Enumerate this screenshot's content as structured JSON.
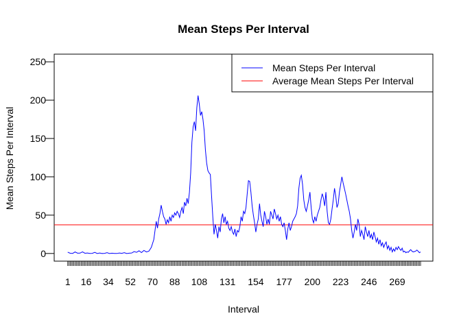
{
  "chart_data": {
    "type": "line",
    "title": "Mean Steps Per Interval",
    "xlabel": "Interval",
    "ylabel": "Mean Steps Per Interval",
    "ylim": [
      -10,
      260
    ],
    "xlim": [
      -10,
      298
    ],
    "y_ticks": [
      0,
      50,
      100,
      150,
      200,
      250
    ],
    "x_tick_labels": [
      {
        "x": 1,
        "label": "1"
      },
      {
        "x": 16,
        "label": "16"
      },
      {
        "x": 34,
        "label": "34"
      },
      {
        "x": 52,
        "label": "52"
      },
      {
        "x": 70,
        "label": "70"
      },
      {
        "x": 88,
        "label": "88"
      },
      {
        "x": 108,
        "label": "108"
      },
      {
        "x": 131,
        "label": "131"
      },
      {
        "x": 154,
        "label": "154"
      },
      {
        "x": 177,
        "label": "177"
      },
      {
        "x": 200,
        "label": "200"
      },
      {
        "x": 223,
        "label": "223"
      },
      {
        "x": 246,
        "label": "246"
      },
      {
        "x": 269,
        "label": "269"
      }
    ],
    "minor_tick_count": 288,
    "grid": false,
    "legend_position": "top-right",
    "series": [
      {
        "name": "Mean Steps Per Interval",
        "color": "#0000ff",
        "points": [
          [
            1,
            1.7
          ],
          [
            3,
            0.3
          ],
          [
            5,
            0.1
          ],
          [
            7,
            2.0
          ],
          [
            9,
            0.4
          ],
          [
            11,
            0.5
          ],
          [
            13,
            2.1
          ],
          [
            15,
            0.3
          ],
          [
            17,
            0.6
          ],
          [
            19,
            0.1
          ],
          [
            21,
            0.2
          ],
          [
            23,
            1.5
          ],
          [
            25,
            0.0
          ],
          [
            27,
            0.6
          ],
          [
            29,
            0.0
          ],
          [
            31,
            0.2
          ],
          [
            33,
            1.0
          ],
          [
            35,
            0.0
          ],
          [
            37,
            0.4
          ],
          [
            39,
            0.1
          ],
          [
            41,
            0.0
          ],
          [
            43,
            0.6
          ],
          [
            45,
            0.2
          ],
          [
            47,
            1.0
          ],
          [
            49,
            0.0
          ],
          [
            51,
            0.4
          ],
          [
            53,
            0.6
          ],
          [
            55,
            2.5
          ],
          [
            57,
            1.5
          ],
          [
            59,
            3.5
          ],
          [
            61,
            1.2
          ],
          [
            63,
            4.0
          ],
          [
            65,
            2.0
          ],
          [
            67,
            3.0
          ],
          [
            69,
            8.0
          ],
          [
            71,
            18.0
          ],
          [
            72,
            30.0
          ],
          [
            73,
            42.0
          ],
          [
            74,
            33.0
          ],
          [
            75,
            45.0
          ],
          [
            76,
            52.0
          ],
          [
            77,
            63.0
          ],
          [
            78,
            55.0
          ],
          [
            79,
            48.0
          ],
          [
            80,
            45.0
          ],
          [
            81,
            38.0
          ],
          [
            82,
            44.0
          ],
          [
            83,
            40.0
          ],
          [
            84,
            48.0
          ],
          [
            85,
            42.0
          ],
          [
            86,
            50.0
          ],
          [
            87,
            47.0
          ],
          [
            88,
            53.0
          ],
          [
            89,
            50.0
          ],
          [
            90,
            55.0
          ],
          [
            91,
            52.0
          ],
          [
            92,
            47.0
          ],
          [
            93,
            55.0
          ],
          [
            94,
            60.0
          ],
          [
            95,
            52.0
          ],
          [
            96,
            67.0
          ],
          [
            97,
            62.0
          ],
          [
            98,
            72.0
          ],
          [
            99,
            65.0
          ],
          [
            100,
            80.0
          ],
          [
            101,
            105.0
          ],
          [
            102,
            145.0
          ],
          [
            103,
            165.0
          ],
          [
            104,
            172.0
          ],
          [
            105,
            160.0
          ],
          [
            106,
            190.0
          ],
          [
            107,
            206.0
          ],
          [
            108,
            195.0
          ],
          [
            109,
            180.0
          ],
          [
            110,
            185.0
          ],
          [
            111,
            175.0
          ],
          [
            112,
            160.0
          ],
          [
            113,
            135.0
          ],
          [
            114,
            118.0
          ],
          [
            115,
            108.0
          ],
          [
            116,
            105.0
          ],
          [
            117,
            103.0
          ],
          [
            118,
            75.0
          ],
          [
            119,
            48.0
          ],
          [
            120,
            25.0
          ],
          [
            121,
            38.0
          ],
          [
            122,
            30.0
          ],
          [
            123,
            20.0
          ],
          [
            124,
            35.0
          ],
          [
            125,
            28.0
          ],
          [
            126,
            45.0
          ],
          [
            127,
            52.0
          ],
          [
            128,
            40.0
          ],
          [
            129,
            48.0
          ],
          [
            130,
            38.0
          ],
          [
            131,
            42.0
          ],
          [
            132,
            33.0
          ],
          [
            133,
            30.0
          ],
          [
            134,
            35.0
          ],
          [
            135,
            28.0
          ],
          [
            136,
            25.0
          ],
          [
            137,
            32.0
          ],
          [
            138,
            22.0
          ],
          [
            139,
            30.0
          ],
          [
            140,
            28.0
          ],
          [
            141,
            35.0
          ],
          [
            142,
            48.0
          ],
          [
            143,
            42.0
          ],
          [
            144,
            55.0
          ],
          [
            145,
            52.0
          ],
          [
            146,
            60.0
          ],
          [
            147,
            78.0
          ],
          [
            148,
            95.0
          ],
          [
            149,
            94.0
          ],
          [
            150,
            80.0
          ],
          [
            151,
            62.0
          ],
          [
            152,
            50.0
          ],
          [
            153,
            40.0
          ],
          [
            154,
            28.0
          ],
          [
            155,
            38.0
          ],
          [
            156,
            45.0
          ],
          [
            157,
            65.0
          ],
          [
            158,
            50.0
          ],
          [
            159,
            42.0
          ],
          [
            160,
            35.0
          ],
          [
            161,
            55.0
          ],
          [
            162,
            48.0
          ],
          [
            163,
            38.0
          ],
          [
            164,
            45.0
          ],
          [
            165,
            38.0
          ],
          [
            166,
            55.0
          ],
          [
            167,
            50.0
          ],
          [
            168,
            45.0
          ],
          [
            169,
            58.0
          ],
          [
            170,
            52.0
          ],
          [
            171,
            45.0
          ],
          [
            172,
            50.0
          ],
          [
            173,
            42.0
          ],
          [
            174,
            48.0
          ],
          [
            175,
            38.0
          ],
          [
            176,
            35.0
          ],
          [
            177,
            40.0
          ],
          [
            178,
            30.0
          ],
          [
            179,
            18.0
          ],
          [
            180,
            32.0
          ],
          [
            181,
            40.0
          ],
          [
            182,
            30.0
          ],
          [
            183,
            35.0
          ],
          [
            184,
            42.0
          ],
          [
            185,
            45.0
          ],
          [
            186,
            48.0
          ],
          [
            187,
            52.0
          ],
          [
            188,
            62.0
          ],
          [
            189,
            85.0
          ],
          [
            190,
            98.0
          ],
          [
            191,
            102.0
          ],
          [
            192,
            90.0
          ],
          [
            193,
            70.0
          ],
          [
            194,
            60.0
          ],
          [
            195,
            55.0
          ],
          [
            196,
            62.0
          ],
          [
            197,
            70.0
          ],
          [
            198,
            80.0
          ],
          [
            199,
            60.0
          ],
          [
            200,
            45.0
          ],
          [
            201,
            40.0
          ],
          [
            202,
            48.0
          ],
          [
            203,
            42.0
          ],
          [
            204,
            50.0
          ],
          [
            205,
            55.0
          ],
          [
            206,
            60.0
          ],
          [
            207,
            70.0
          ],
          [
            208,
            78.0
          ],
          [
            209,
            72.0
          ],
          [
            210,
            62.0
          ],
          [
            211,
            80.0
          ],
          [
            212,
            55.0
          ],
          [
            213,
            40.0
          ],
          [
            214,
            38.0
          ],
          [
            215,
            45.0
          ],
          [
            216,
            58.0
          ],
          [
            217,
            70.0
          ],
          [
            218,
            85.0
          ],
          [
            219,
            75.0
          ],
          [
            220,
            60.0
          ],
          [
            221,
            65.0
          ],
          [
            222,
            80.0
          ],
          [
            223,
            90.0
          ],
          [
            224,
            100.0
          ],
          [
            225,
            92.0
          ],
          [
            226,
            85.0
          ],
          [
            227,
            78.0
          ],
          [
            228,
            70.0
          ],
          [
            229,
            62.0
          ],
          [
            230,
            55.0
          ],
          [
            231,
            45.0
          ],
          [
            232,
            30.0
          ],
          [
            233,
            20.0
          ],
          [
            234,
            28.0
          ],
          [
            235,
            38.0
          ],
          [
            236,
            30.0
          ],
          [
            237,
            45.0
          ],
          [
            238,
            38.0
          ],
          [
            239,
            22.0
          ],
          [
            240,
            30.0
          ],
          [
            241,
            25.0
          ],
          [
            242,
            18.0
          ],
          [
            243,
            35.0
          ],
          [
            244,
            28.0
          ],
          [
            245,
            22.0
          ],
          [
            246,
            30.0
          ],
          [
            247,
            20.0
          ],
          [
            248,
            25.0
          ],
          [
            249,
            18.0
          ],
          [
            250,
            28.0
          ],
          [
            251,
            22.0
          ],
          [
            252,
            15.0
          ],
          [
            253,
            20.0
          ],
          [
            254,
            12.0
          ],
          [
            255,
            18.0
          ],
          [
            256,
            10.0
          ],
          [
            257,
            14.0
          ],
          [
            258,
            8.0
          ],
          [
            259,
            12.0
          ],
          [
            260,
            15.0
          ],
          [
            261,
            6.0
          ],
          [
            262,
            10.0
          ],
          [
            263,
            4.0
          ],
          [
            264,
            8.0
          ],
          [
            265,
            2.0
          ],
          [
            266,
            6.0
          ],
          [
            267,
            3.0
          ],
          [
            268,
            8.0
          ],
          [
            269,
            5.0
          ],
          [
            270,
            9.0
          ],
          [
            271,
            6.0
          ],
          [
            272,
            4.0
          ],
          [
            273,
            7.0
          ],
          [
            274,
            2.0
          ],
          [
            275,
            3.0
          ],
          [
            276,
            1.0
          ],
          [
            277,
            2.0
          ],
          [
            278,
            1.5
          ],
          [
            279,
            3.5
          ],
          [
            280,
            5.0
          ],
          [
            281,
            3.0
          ],
          [
            282,
            2.0
          ],
          [
            283,
            2.5
          ],
          [
            284,
            3.0
          ],
          [
            285,
            4.5
          ],
          [
            286,
            3.0
          ],
          [
            287,
            1.0
          ],
          [
            288,
            2.0
          ]
        ]
      },
      {
        "name": "Average Mean Steps Per Interval",
        "color": "#ff0000",
        "value": 37.4
      }
    ]
  }
}
